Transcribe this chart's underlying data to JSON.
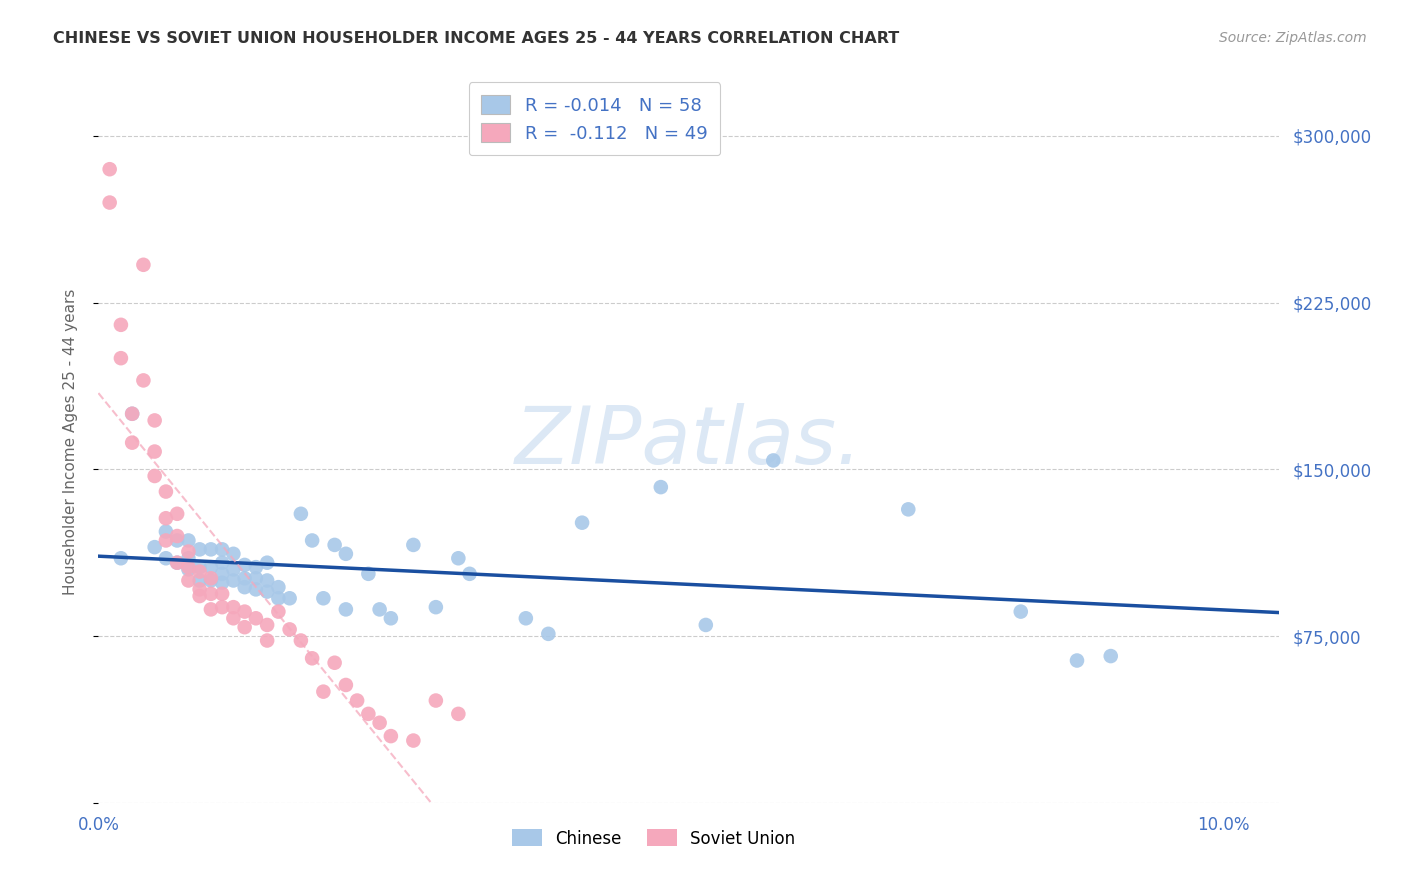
{
  "title": "CHINESE VS SOVIET UNION HOUSEHOLDER INCOME AGES 25 - 44 YEARS CORRELATION CHART",
  "source": "Source: ZipAtlas.com",
  "ylabel": "Householder Income Ages 25 - 44 years",
  "xlim": [
    0.0,
    0.105
  ],
  "ylim": [
    0,
    325000
  ],
  "yticks": [
    0,
    75000,
    150000,
    225000,
    300000
  ],
  "ytick_labels": [
    "",
    "$75,000",
    "$150,000",
    "$225,000",
    "$300,000"
  ],
  "xticks": [
    0.0,
    0.02,
    0.04,
    0.06,
    0.08,
    0.1
  ],
  "xtick_labels": [
    "0.0%",
    "",
    "",
    "",
    "",
    "10.0%"
  ],
  "chinese_R": "-0.014",
  "chinese_N": "58",
  "soviet_R": "-0.112",
  "soviet_N": "49",
  "legend_labels": [
    "Chinese",
    "Soviet Union"
  ],
  "chinese_color": "#a8c8e8",
  "soviet_color": "#f5a8bc",
  "chinese_line_color": "#1a4fa0",
  "soviet_line_color": "#f5a8bc",
  "watermark_color": "#dce8f5",
  "background_color": "#ffffff",
  "grid_color": "#cccccc",
  "label_color": "#4472c4",
  "title_color": "#333333",
  "source_color": "#999999",
  "chinese_x": [
    0.002,
    0.003,
    0.005,
    0.006,
    0.006,
    0.007,
    0.007,
    0.008,
    0.008,
    0.008,
    0.009,
    0.009,
    0.009,
    0.01,
    0.01,
    0.01,
    0.011,
    0.011,
    0.011,
    0.011,
    0.012,
    0.012,
    0.012,
    0.013,
    0.013,
    0.013,
    0.014,
    0.014,
    0.014,
    0.015,
    0.015,
    0.015,
    0.016,
    0.016,
    0.017,
    0.018,
    0.019,
    0.02,
    0.021,
    0.022,
    0.022,
    0.024,
    0.025,
    0.026,
    0.028,
    0.03,
    0.032,
    0.033,
    0.038,
    0.04,
    0.043,
    0.05,
    0.054,
    0.06,
    0.072,
    0.082,
    0.087,
    0.09
  ],
  "chinese_y": [
    110000,
    175000,
    115000,
    110000,
    122000,
    108000,
    118000,
    105000,
    110000,
    118000,
    100000,
    106000,
    114000,
    100000,
    106000,
    114000,
    99000,
    103000,
    108000,
    114000,
    100000,
    105000,
    112000,
    97000,
    101000,
    107000,
    96000,
    101000,
    106000,
    95000,
    100000,
    108000,
    92000,
    97000,
    92000,
    130000,
    118000,
    92000,
    116000,
    87000,
    112000,
    103000,
    87000,
    83000,
    116000,
    88000,
    110000,
    103000,
    83000,
    76000,
    126000,
    142000,
    80000,
    154000,
    132000,
    86000,
    64000,
    66000
  ],
  "soviet_x": [
    0.001,
    0.001,
    0.002,
    0.002,
    0.003,
    0.003,
    0.004,
    0.004,
    0.005,
    0.005,
    0.005,
    0.006,
    0.006,
    0.006,
    0.007,
    0.007,
    0.007,
    0.008,
    0.008,
    0.008,
    0.009,
    0.009,
    0.009,
    0.01,
    0.01,
    0.01,
    0.011,
    0.011,
    0.012,
    0.012,
    0.013,
    0.013,
    0.014,
    0.015,
    0.015,
    0.016,
    0.017,
    0.018,
    0.019,
    0.02,
    0.021,
    0.022,
    0.023,
    0.024,
    0.025,
    0.026,
    0.028,
    0.03,
    0.032
  ],
  "soviet_y": [
    285000,
    270000,
    200000,
    215000,
    175000,
    162000,
    242000,
    190000,
    172000,
    158000,
    147000,
    140000,
    128000,
    118000,
    130000,
    120000,
    108000,
    113000,
    106000,
    100000,
    104000,
    96000,
    93000,
    101000,
    94000,
    87000,
    94000,
    88000,
    88000,
    83000,
    86000,
    79000,
    83000,
    80000,
    73000,
    86000,
    78000,
    73000,
    65000,
    50000,
    63000,
    53000,
    46000,
    40000,
    36000,
    30000,
    28000,
    46000,
    40000
  ]
}
